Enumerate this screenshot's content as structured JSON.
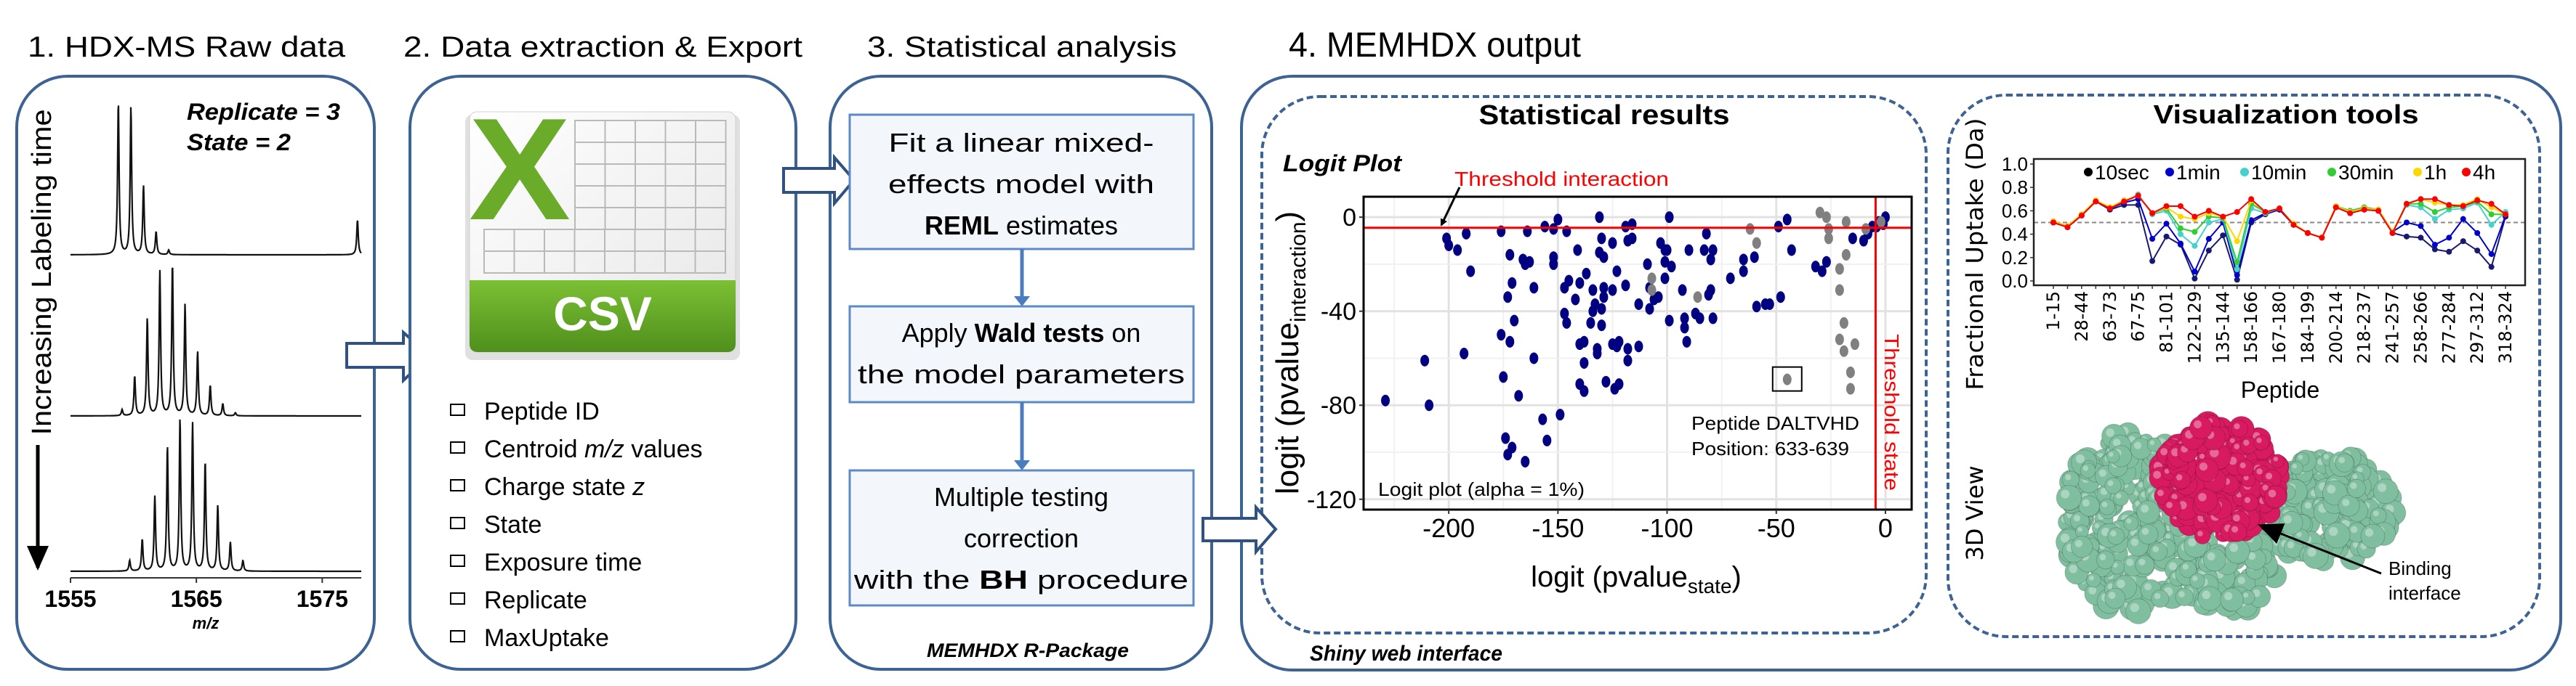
{
  "panels": {
    "raw": {
      "title": "1. HDX-MS Raw data",
      "replicate": "Replicate = 3",
      "state": "State = 2",
      "time_axis_label": "Increasing Labeling time"
    },
    "extraction": {
      "title": "2. Data extraction & Export",
      "file_icon_label": "CSV",
      "file_icon_letter": "X",
      "fields": [
        {
          "text": "Peptide ID"
        },
        {
          "pre": "Centroid ",
          "italic": "m/z",
          "post": " values"
        },
        {
          "pre": "Charge state ",
          "italic": "z"
        },
        {
          "text": "State"
        },
        {
          "text": "Exposure time"
        },
        {
          "text": "Replicate"
        },
        {
          "text": "MaxUptake"
        }
      ]
    },
    "stats": {
      "title": "3. Statistical analysis",
      "steps": [
        {
          "line1": "Fit a linear mixed-",
          "line2": "effects model with",
          "line3_bold": "REML",
          "line3_post": " estimates"
        },
        {
          "line1_pre": "Apply ",
          "line1_bold": "Wald tests",
          "line1_post": " on",
          "line2": "the model parameters"
        },
        {
          "line1": "Multiple testing",
          "line2": "correction",
          "line3_pre": "with the ",
          "line3_bold": "BH",
          "line3_post": " procedure"
        }
      ],
      "footer": "MEMHDX R-Package"
    },
    "output": {
      "title": "4. MEMHDX output",
      "footer": "Shiny web interface",
      "statistical_results": {
        "title": "Statistical results",
        "plot_title": "Logit Plot",
        "threshold_interaction_label": "Threshold interaction",
        "threshold_state_label": "Threshold state",
        "annotation_peptide": "Peptide DALTVHD",
        "annotation_position": "Position: 633-639",
        "alpha_note": "Logit plot (alpha = 1%)"
      },
      "visualization": {
        "title": "Visualization tools",
        "view3d_label": "3D View",
        "binding_label_line1": "Binding",
        "binding_label_line2": "interface"
      }
    }
  },
  "colors": {
    "box_border": "#3d6394",
    "step_fill": "#f3f6fb",
    "step_border": "#5b8ac6",
    "csv_green": "#6aab2a",
    "threshold_red": "#ff0000",
    "significant_point": "#000080",
    "nonsignificant_point": "#808080",
    "protein_main": "#7fbf9f",
    "binding_interface": "#d81b60"
  },
  "chart_data": [
    {
      "id": "raw-spectra",
      "type": "line",
      "title": "",
      "xlabel": "m/z",
      "ylabel": "",
      "xlim": [
        1555,
        1578.1
      ],
      "x_ticks": [
        "1555",
        "1565",
        "1575"
      ],
      "series": [
        {
          "peaks": [
            [
              1558.8,
              1.0
            ],
            [
              1559.8,
              0.97
            ],
            [
              1560.8,
              0.45
            ],
            [
              1561.8,
              0.15
            ],
            [
              1562.8,
              0.03
            ],
            [
              1577.8,
              0.23
            ]
          ]
        },
        {
          "peaks": [
            [
              1559.1,
              0.04
            ],
            [
              1560.1,
              0.26
            ],
            [
              1561.1,
              0.64
            ],
            [
              1562.1,
              0.95
            ],
            [
              1563.1,
              1.0
            ],
            [
              1564.1,
              0.73
            ],
            [
              1565.1,
              0.42
            ],
            [
              1566.1,
              0.2
            ],
            [
              1567.1,
              0.08
            ],
            [
              1568.1,
              0.02
            ]
          ]
        },
        {
          "peaks": [
            [
              1559.7,
              0.07
            ],
            [
              1560.7,
              0.21
            ],
            [
              1561.7,
              0.49
            ],
            [
              1562.7,
              0.82
            ],
            [
              1563.7,
              1.0
            ],
            [
              1564.7,
              0.97
            ],
            [
              1565.7,
              0.72
            ],
            [
              1566.7,
              0.43
            ],
            [
              1567.7,
              0.19
            ],
            [
              1568.7,
              0.07
            ]
          ]
        }
      ]
    },
    {
      "id": "logit-plot",
      "type": "scatter",
      "title": "Logit Plot",
      "xlabel_main": "logit (pvalue",
      "xlabel_sub": "state",
      "xlabel_end": ")",
      "ylabel_main": "logit (pvalue",
      "ylabel_sub": "interaction",
      "ylabel_end": ")",
      "xlim": [
        -239,
        12
      ],
      "ylim": [
        -124.4,
        8.7
      ],
      "x_ticks": [
        -200,
        -150,
        -100,
        -50,
        0
      ],
      "y_ticks": [
        0,
        -40,
        -80,
        -120
      ],
      "grid": true,
      "threshold_interaction": -4.5,
      "threshold_state": -4.5,
      "highlighted_point": [
        -45,
        -69
      ],
      "significant": [
        [
          -229,
          -78
        ],
        [
          -209,
          -80
        ],
        [
          -211,
          -61
        ],
        [
          -193,
          -58
        ],
        [
          -201,
          -9
        ],
        [
          -200,
          -12
        ],
        [
          -196,
          -14
        ],
        [
          -192,
          -7
        ],
        [
          -190,
          -23
        ],
        [
          -176,
          -6
        ],
        [
          -172,
          -16
        ],
        [
          -171,
          -28
        ],
        [
          -173,
          -34
        ],
        [
          -170,
          -44
        ],
        [
          -176,
          -50
        ],
        [
          -172,
          -53
        ],
        [
          -175,
          -68
        ],
        [
          -168,
          -76
        ],
        [
          -164,
          -6
        ],
        [
          -166,
          -18
        ],
        [
          -163,
          -19
        ],
        [
          -165,
          -20
        ],
        [
          -161,
          -30
        ],
        [
          -161,
          -60
        ],
        [
          -156,
          -4
        ],
        [
          -150,
          -1
        ],
        [
          -152,
          -5
        ],
        [
          -146,
          -6
        ],
        [
          -152,
          -17
        ],
        [
          -152,
          -20
        ],
        [
          -147,
          -30
        ],
        [
          -145,
          -27
        ],
        [
          -147,
          -41
        ],
        [
          -146,
          -45
        ],
        [
          -149,
          -84
        ],
        [
          -157,
          -86
        ],
        [
          -155,
          -95
        ],
        [
          -174,
          -94
        ],
        [
          -171,
          -98
        ],
        [
          -173,
          -101
        ],
        [
          -165,
          -104
        ],
        [
          -141,
          -14
        ],
        [
          -140,
          -28
        ],
        [
          -137,
          -24
        ],
        [
          -142,
          -35
        ],
        [
          -134,
          -31
        ],
        [
          -133,
          -37
        ],
        [
          -134,
          -40
        ],
        [
          -130,
          -39
        ],
        [
          -135,
          -45
        ],
        [
          -130,
          -46
        ],
        [
          -138,
          -53
        ],
        [
          -140,
          -54
        ],
        [
          -132,
          -56
        ],
        [
          -132,
          -58
        ],
        [
          -138,
          -62
        ],
        [
          -140,
          -71
        ],
        [
          -138,
          -74
        ],
        [
          -131,
          0
        ],
        [
          -130,
          -9
        ],
        [
          -131,
          -15
        ],
        [
          -129,
          -17
        ],
        [
          -125,
          -11
        ],
        [
          -129,
          -30
        ],
        [
          -125,
          -31
        ],
        [
          -129,
          -34
        ],
        [
          -123,
          -23
        ],
        [
          -119,
          -29
        ],
        [
          -119,
          -4
        ],
        [
          -116,
          -3
        ],
        [
          -118,
          -10
        ],
        [
          -116,
          -9
        ],
        [
          -113,
          -37
        ],
        [
          -113,
          -55
        ],
        [
          -125,
          -54
        ],
        [
          -122,
          -53
        ],
        [
          -123,
          -55
        ],
        [
          -118,
          -56
        ],
        [
          -118,
          -61
        ],
        [
          -128,
          -70
        ],
        [
          -124,
          -73
        ],
        [
          -122,
          -71
        ],
        [
          -109,
          -20
        ],
        [
          -108,
          -30
        ],
        [
          -108,
          -39
        ],
        [
          -106,
          -35
        ],
        [
          -104,
          -34
        ],
        [
          -103,
          -11
        ],
        [
          -101,
          -14
        ],
        [
          -100,
          -14
        ],
        [
          -101,
          -19
        ],
        [
          -98,
          -21
        ],
        [
          -101,
          -26
        ],
        [
          -99,
          0
        ],
        [
          -99,
          -44
        ],
        [
          -93,
          -31
        ],
        [
          -92,
          -43
        ],
        [
          -92,
          -47
        ],
        [
          -91,
          -53
        ],
        [
          -90,
          -14
        ],
        [
          -87,
          -41
        ],
        [
          -85,
          -43
        ],
        [
          -83,
          -14
        ],
        [
          -82,
          -7
        ],
        [
          -79,
          -14
        ],
        [
          -80,
          -18
        ],
        [
          -80,
          -31
        ],
        [
          -81,
          -33
        ],
        [
          -79,
          -43
        ],
        [
          -71,
          -26
        ],
        [
          -65,
          -18
        ],
        [
          -65,
          -23
        ],
        [
          -60,
          -17
        ],
        [
          -59,
          -38
        ],
        [
          -55,
          -37
        ],
        [
          -53,
          -37
        ],
        [
          -48,
          -34
        ],
        [
          -49,
          -4
        ],
        [
          -45,
          -1
        ],
        [
          -43,
          -14
        ],
        [
          -32,
          -21
        ],
        [
          -29,
          -23
        ],
        [
          -27,
          -19
        ],
        [
          -15,
          -9
        ],
        [
          -10,
          -10
        ],
        [
          -8,
          -7
        ],
        [
          -6,
          -4
        ],
        [
          -4,
          -4
        ],
        [
          0,
          0
        ],
        [
          -3,
          -2
        ],
        [
          -1,
          -3
        ]
      ],
      "not_significant": [
        [
          -30,
          2
        ],
        [
          -27,
          0
        ],
        [
          -26,
          -5
        ],
        [
          -26,
          -9
        ],
        [
          -18,
          -2
        ],
        [
          -18,
          -16
        ],
        [
          -21,
          -22
        ],
        [
          -21,
          -31
        ],
        [
          -19,
          -45
        ],
        [
          -21,
          -52
        ],
        [
          -19,
          -57
        ],
        [
          -14,
          -54
        ],
        [
          -16,
          -66
        ],
        [
          -16,
          -73
        ],
        [
          -45,
          -69
        ],
        [
          -62,
          -5
        ],
        [
          -59,
          -11
        ],
        [
          -107,
          -26
        ],
        [
          -107,
          -31
        ],
        [
          -86,
          -34
        ],
        [
          -9,
          -5
        ],
        [
          -2,
          -2
        ]
      ]
    },
    {
      "id": "fractional-uptake",
      "type": "line",
      "title": "",
      "xlabel": "Peptide",
      "ylabel": "Fractional Uptake (Da)",
      "ylim": [
        0,
        1.04
      ],
      "y_ticks": [
        "0.0",
        "0.2",
        "0.4",
        "0.6",
        "0.8",
        "1.0"
      ],
      "reference_line": 0.5,
      "legend_position": "top",
      "x_tick_labels": [
        "1-15",
        "28-44",
        "63-73",
        "67-75",
        "81-101",
        "122-129",
        "135-144",
        "158-166",
        "167-180",
        "184-199",
        "200-214",
        "218-237",
        "241-257",
        "258-266",
        "277-284",
        "297-312",
        "318-324"
      ],
      "series": [
        {
          "name": "10sec",
          "color": "#191970",
          "legend_color": "#000000",
          "values": [
            0.5,
            0.46,
            0.56,
            0.68,
            0.61,
            0.65,
            0.65,
            0.17,
            0.38,
            0.31,
            0.02,
            0.26,
            0.39,
            0.01,
            0.5,
            0.57,
            0.61,
            0.48,
            0.41,
            0.37,
            0.63,
            0.58,
            0.61,
            0.6,
            0.41,
            0.38,
            0.37,
            0.27,
            0.25,
            0.34,
            0.26,
            0.12,
            0.55
          ]
        },
        {
          "name": "1min",
          "color": "#0000cd",
          "legend_color": "#0000cd",
          "values": [
            0.5,
            0.46,
            0.56,
            0.68,
            0.62,
            0.67,
            0.7,
            0.36,
            0.49,
            0.32,
            0.08,
            0.36,
            0.5,
            0.05,
            0.52,
            0.58,
            0.61,
            0.48,
            0.41,
            0.37,
            0.63,
            0.59,
            0.62,
            0.61,
            0.42,
            0.5,
            0.47,
            0.31,
            0.37,
            0.53,
            0.41,
            0.23,
            0.56
          ]
        },
        {
          "name": "10min",
          "color": "#48d1cc",
          "legend_color": "#48d1cc",
          "values": [
            0.51,
            0.47,
            0.57,
            0.68,
            0.63,
            0.68,
            0.74,
            0.57,
            0.6,
            0.4,
            0.3,
            0.5,
            0.53,
            0.1,
            0.62,
            0.58,
            0.62,
            0.48,
            0.41,
            0.37,
            0.64,
            0.6,
            0.63,
            0.61,
            0.42,
            0.65,
            0.63,
            0.53,
            0.61,
            0.62,
            0.67,
            0.48,
            0.59
          ]
        },
        {
          "name": "30min",
          "color": "#32cd32",
          "legend_color": "#32cd32",
          "values": [
            0.51,
            0.47,
            0.57,
            0.68,
            0.63,
            0.68,
            0.73,
            0.58,
            0.62,
            0.45,
            0.42,
            0.55,
            0.54,
            0.16,
            0.66,
            0.59,
            0.62,
            0.48,
            0.41,
            0.37,
            0.64,
            0.6,
            0.63,
            0.61,
            0.42,
            0.66,
            0.66,
            0.59,
            0.63,
            0.64,
            0.68,
            0.57,
            0.57
          ]
        },
        {
          "name": "1h",
          "color": "#ffd700",
          "legend_color": "#ffd700",
          "values": [
            0.51,
            0.47,
            0.57,
            0.69,
            0.63,
            0.69,
            0.73,
            0.58,
            0.63,
            0.55,
            0.53,
            0.58,
            0.55,
            0.34,
            0.69,
            0.59,
            0.62,
            0.49,
            0.41,
            0.37,
            0.64,
            0.59,
            0.62,
            0.61,
            0.42,
            0.66,
            0.7,
            0.67,
            0.65,
            0.65,
            0.7,
            0.63,
            0.57
          ]
        },
        {
          "name": "4h",
          "color": "#ff0000",
          "legend_color": "#ff0000",
          "values": [
            0.5,
            0.46,
            0.56,
            0.68,
            0.62,
            0.68,
            0.73,
            0.58,
            0.64,
            0.64,
            0.55,
            0.6,
            0.55,
            0.59,
            0.7,
            0.59,
            0.62,
            0.48,
            0.41,
            0.37,
            0.63,
            0.58,
            0.61,
            0.6,
            0.41,
            0.66,
            0.7,
            0.7,
            0.65,
            0.64,
            0.69,
            0.66,
            0.57
          ]
        }
      ]
    }
  ]
}
